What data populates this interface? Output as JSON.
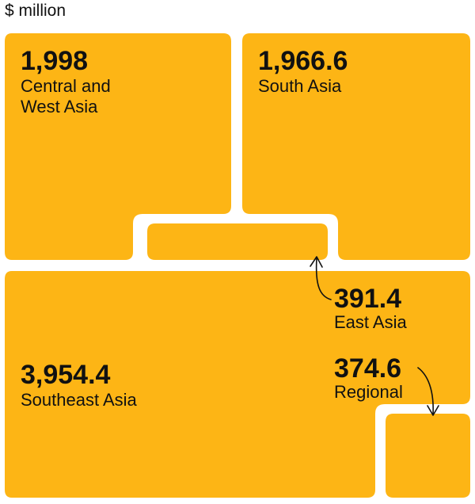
{
  "unit_label": "$ million",
  "colors": {
    "tile": "#FDB515",
    "text": "#111111",
    "background": "#FFFFFF"
  },
  "chart_data": {
    "type": "treemap",
    "unit": "$ million",
    "items": [
      {
        "name": "Central and West Asia",
        "value": 1998,
        "value_label": "1,998",
        "label_lines": [
          "Central and",
          "West Asia"
        ]
      },
      {
        "name": "South Asia",
        "value": 1966.6,
        "value_label": "1,966.6",
        "label_lines": [
          "South Asia"
        ]
      },
      {
        "name": "East Asia",
        "value": 391.4,
        "value_label": "391.4",
        "label_lines": [
          "East Asia"
        ]
      },
      {
        "name": "Southeast Asia",
        "value": 3954.4,
        "value_label": "3,954.4",
        "label_lines": [
          "Southeast Asia"
        ]
      },
      {
        "name": "Regional",
        "value": 374.6,
        "value_label": "374.6",
        "label_lines": [
          "Regional"
        ]
      }
    ]
  }
}
